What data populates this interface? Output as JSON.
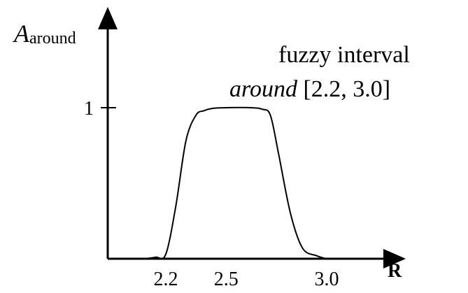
{
  "chart_data": {
    "type": "line",
    "y_axis_label": {
      "main": "A",
      "subscript": "around"
    },
    "x_axis_label": "R",
    "annotation": {
      "line1": "fuzzy interval",
      "line2_italic": "around",
      "line2_rest": " [2.2, 3.0]"
    },
    "x_ticks": [
      {
        "value": 2.2,
        "label": "2.2"
      },
      {
        "value": 2.5,
        "label": "2.5"
      },
      {
        "value": 3.0,
        "label": "3.0"
      }
    ],
    "y_ticks": [
      {
        "value": 1,
        "label": "1"
      }
    ],
    "xlim": [
      1.6,
      3.5
    ],
    "ylim": [
      0,
      1.3
    ],
    "series": [
      {
        "x": [
          1.95,
          2.08,
          2.15,
          2.2,
          2.25,
          2.3,
          2.35,
          2.39,
          2.43,
          2.5,
          2.62,
          2.68,
          2.72,
          2.76,
          2.82,
          2.88,
          2.95,
          3.0,
          3.02
        ],
        "y": [
          0.0,
          0.0,
          0.01,
          0.03,
          0.35,
          0.78,
          0.95,
          0.98,
          0.995,
          1.0,
          1.0,
          0.99,
          0.95,
          0.7,
          0.3,
          0.07,
          0.02,
          0.0,
          0.0
        ]
      }
    ],
    "color": "#000000",
    "grid": false
  }
}
